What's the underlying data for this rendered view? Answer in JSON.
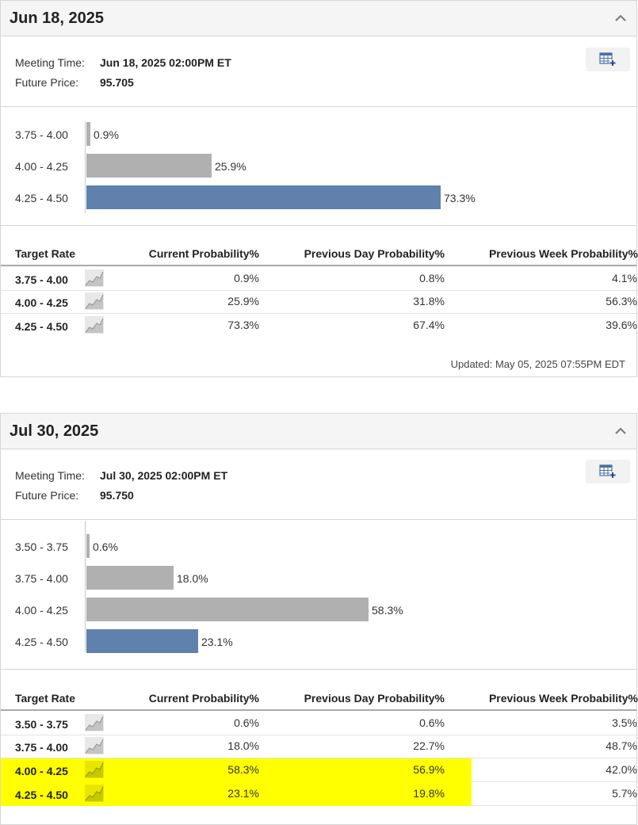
{
  "meetings": [
    {
      "title": "Jun 18, 2025",
      "meeting_time_label": "Meeting Time:",
      "meeting_time": "Jun 18, 2025 02:00PM ET",
      "future_price_label": "Future Price:",
      "future_price": "95.705",
      "chart_data": {
        "type": "bar",
        "orientation": "horizontal",
        "categories": [
          "3.75 - 4.00",
          "4.00 - 4.25",
          "4.25 - 4.50"
        ],
        "values": [
          0.9,
          25.9,
          73.3
        ],
        "value_labels": [
          "0.9%",
          "25.9%",
          "73.3%"
        ],
        "colors": [
          "#b0b0b0",
          "#b0b0b0",
          "#5f81ab"
        ]
      },
      "table": {
        "headers": [
          "Target Rate",
          "Current Probability%",
          "Previous Day Probability%",
          "Previous Week Probability%"
        ],
        "rows": [
          {
            "rate": "3.75 - 4.00",
            "current": "0.9%",
            "prev_day": "0.8%",
            "prev_week": "4.1%"
          },
          {
            "rate": "4.00 - 4.25",
            "current": "25.9%",
            "prev_day": "31.8%",
            "prev_week": "56.3%"
          },
          {
            "rate": "4.25 - 4.50",
            "current": "73.3%",
            "prev_day": "67.4%",
            "prev_week": "39.6%"
          }
        ]
      },
      "updated": "Updated: May 05, 2025 07:55PM EDT"
    },
    {
      "title": "Jul 30, 2025",
      "meeting_time_label": "Meeting Time:",
      "meeting_time": "Jul 30, 2025 02:00PM ET",
      "future_price_label": "Future Price:",
      "future_price": "95.750",
      "chart_data": {
        "type": "bar",
        "orientation": "horizontal",
        "categories": [
          "3.50 - 3.75",
          "3.75 - 4.00",
          "4.00 - 4.25",
          "4.25 - 4.50"
        ],
        "values": [
          0.6,
          18.0,
          58.3,
          23.1
        ],
        "value_labels": [
          "0.6%",
          "18.0%",
          "58.3%",
          "23.1%"
        ],
        "colors": [
          "#b0b0b0",
          "#b0b0b0",
          "#b0b0b0",
          "#5f81ab"
        ]
      },
      "table": {
        "headers": [
          "Target Rate",
          "Current Probability%",
          "Previous Day Probability%",
          "Previous Week Probability%"
        ],
        "rows": [
          {
            "rate": "3.50 - 3.75",
            "current": "0.6%",
            "prev_day": "0.6%",
            "prev_week": "3.5%",
            "highlighted": false
          },
          {
            "rate": "3.75 - 4.00",
            "current": "18.0%",
            "prev_day": "22.7%",
            "prev_week": "48.7%",
            "highlighted": false
          },
          {
            "rate": "4.00 - 4.25",
            "current": "58.3%",
            "prev_day": "56.9%",
            "prev_week": "42.0%",
            "highlighted": true
          },
          {
            "rate": "4.25 - 4.50",
            "current": "23.1%",
            "prev_day": "19.8%",
            "prev_week": "5.7%",
            "highlighted": true
          }
        ]
      }
    }
  ],
  "highlight_color": "#ffff00",
  "icons": {
    "collapse": "chevron-up-icon",
    "export": "table-add-icon",
    "sparkline": "trend-chart-icon"
  }
}
